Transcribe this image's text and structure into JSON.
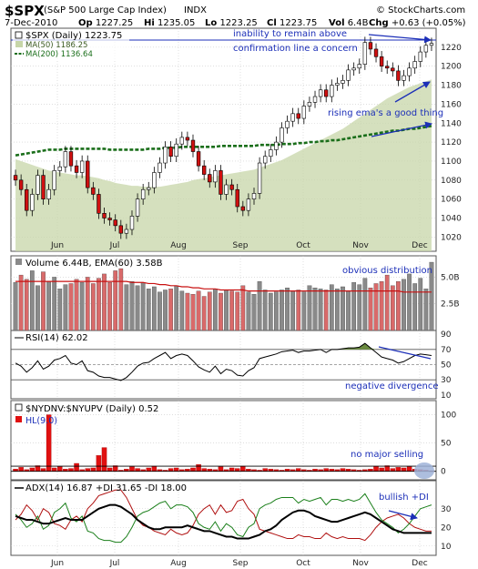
{
  "header": {
    "symbol": "$SPX",
    "name": "(S&P 500 Large Cap Index)",
    "exchange": "INDX",
    "copyright": "© StockCharts.com",
    "date": "7-Dec-2010",
    "open_label": "Op",
    "open": "1227.25",
    "high_label": "Hi",
    "high": "1235.05",
    "low_label": "Lo",
    "low": "1223.25",
    "close_label": "Cl",
    "close": "1223.75",
    "vol_label": "Vol",
    "vol": "6.4B",
    "chg_label": "Chg",
    "chg": "+0.63 (+0.05%)"
  },
  "colors": {
    "up": "#ffffff",
    "down": "#d01010",
    "candle_outline": "#000000",
    "ma50_area": "#c7d6a8",
    "ma200": "#1a6e1a",
    "annotation": "#1c2fb8",
    "volume_up": "#8a8a8a",
    "volume_down": "#d96a6a",
    "ema_line": "#c81010",
    "hl_bar": "#e01010",
    "adx": "#000000",
    "plus_di": "#1a7f1a",
    "minus_di": "#b01010"
  },
  "chart_data": {
    "type": "line",
    "x_labels": [
      "Jun",
      "Jul",
      "Aug",
      "Sep",
      "Oct",
      "Nov",
      "Dec"
    ],
    "price": {
      "legend": "$SPX (Daily) 1223.75",
      "ma50_legend": "MA(50) 1186.25",
      "ma200_legend": "MA(200) 1136.64",
      "yticks": [
        1020,
        1040,
        1060,
        1080,
        1100,
        1120,
        1140,
        1160,
        1180,
        1200,
        1220
      ],
      "ylim": [
        1005,
        1240
      ],
      "close": [
        1080,
        1070,
        1048,
        1065,
        1085,
        1060,
        1070,
        1090,
        1094,
        1110,
        1095,
        1088,
        1100,
        1072,
        1065,
        1045,
        1040,
        1038,
        1032,
        1024,
        1028,
        1042,
        1060,
        1070,
        1072,
        1088,
        1098,
        1115,
        1105,
        1118,
        1125,
        1122,
        1110,
        1095,
        1086,
        1078,
        1090,
        1065,
        1075,
        1070,
        1052,
        1048,
        1060,
        1066,
        1098,
        1105,
        1112,
        1120,
        1135,
        1142,
        1150,
        1145,
        1158,
        1162,
        1168,
        1175,
        1168,
        1180,
        1182,
        1185,
        1196,
        1198,
        1202,
        1225,
        1218,
        1210,
        1200,
        1198,
        1195,
        1185,
        1190,
        1198,
        1205,
        1215,
        1222,
        1224
      ],
      "ma50": [
        1102,
        1100,
        1098,
        1096,
        1094,
        1092,
        1090,
        1089,
        1088,
        1087,
        1086,
        1085,
        1085,
        1084,
        1083,
        1082,
        1080,
        1079,
        1077,
        1076,
        1075,
        1074,
        1074,
        1073,
        1073,
        1073,
        1073,
        1074,
        1075,
        1076,
        1077,
        1078,
        1080,
        1081,
        1082,
        1083,
        1084,
        1085,
        1086,
        1087,
        1088,
        1089,
        1090,
        1091,
        1093,
        1095,
        1097,
        1099,
        1101,
        1104,
        1107,
        1110,
        1113,
        1116,
        1119,
        1122,
        1125,
        1128,
        1131,
        1134,
        1138,
        1142,
        1146,
        1150,
        1154,
        1158,
        1162,
        1166,
        1169,
        1172,
        1175,
        1178,
        1180,
        1182,
        1184,
        1186
      ],
      "ma200": [
        1106,
        1107,
        1108,
        1109,
        1110,
        1111,
        1112,
        1112,
        1112,
        1113,
        1113,
        1113,
        1113,
        1113,
        1113,
        1113,
        1113,
        1112,
        1112,
        1112,
        1112,
        1112,
        1112,
        1112,
        1113,
        1113,
        1113,
        1114,
        1114,
        1114,
        1115,
        1115,
        1115,
        1115,
        1115,
        1115,
        1115,
        1116,
        1116,
        1116,
        1116,
        1116,
        1116,
        1116,
        1117,
        1117,
        1117,
        1117,
        1118,
        1118,
        1118,
        1119,
        1119,
        1120,
        1120,
        1121,
        1121,
        1122,
        1122,
        1123,
        1124,
        1125,
        1126,
        1127,
        1128,
        1129,
        1130,
        1131,
        1132,
        1132,
        1133,
        1134,
        1134,
        1135,
        1136,
        1137
      ]
    },
    "volume": {
      "legend": "Volume 6.44B, EMA(60) 3.58B",
      "yticks": [
        "5.0B",
        "2.5B"
      ],
      "ylim": [
        0,
        7
      ],
      "values": [
        4.5,
        5.2,
        4.8,
        5.6,
        4.2,
        5.5,
        4.6,
        5.0,
        3.9,
        4.3,
        4.4,
        4.8,
        4.5,
        5.0,
        4.4,
        4.9,
        5.3,
        4.5,
        5.6,
        5.8,
        4.3,
        4.6,
        4.2,
        4.5,
        3.9,
        4.1,
        3.6,
        3.8,
        3.9,
        4.2,
        3.7,
        3.5,
        3.4,
        3.7,
        3.2,
        3.6,
        3.9,
        3.5,
        3.8,
        3.7,
        3.6,
        4.2,
        3.6,
        3.4,
        4.6,
        3.8,
        3.5,
        3.6,
        3.8,
        4.0,
        3.7,
        3.8,
        3.6,
        4.2,
        4.0,
        3.9,
        3.8,
        4.3,
        3.9,
        4.1,
        3.7,
        4.5,
        4.3,
        4.9,
        4.0,
        4.4,
        4.6,
        5.2,
        4.2,
        4.6,
        4.8,
        5.3,
        4.4,
        4.9,
        3.9,
        6.4
      ],
      "ema": [
        4.6,
        4.6,
        4.6,
        4.6,
        4.6,
        4.6,
        4.6,
        4.6,
        4.6,
        4.6,
        4.6,
        4.6,
        4.6,
        4.6,
        4.6,
        4.6,
        4.6,
        4.6,
        4.6,
        4.6,
        4.6,
        4.5,
        4.5,
        4.5,
        4.4,
        4.4,
        4.3,
        4.3,
        4.2,
        4.2,
        4.1,
        4.1,
        4.0,
        4.0,
        3.9,
        3.9,
        3.9,
        3.8,
        3.8,
        3.8,
        3.8,
        3.8,
        3.7,
        3.7,
        3.7,
        3.7,
        3.7,
        3.7,
        3.7,
        3.7,
        3.7,
        3.7,
        3.7,
        3.7,
        3.7,
        3.7,
        3.7,
        3.7,
        3.7,
        3.7,
        3.7,
        3.7,
        3.7,
        3.7,
        3.7,
        3.7,
        3.7,
        3.7,
        3.7,
        3.7,
        3.6,
        3.6,
        3.6,
        3.6,
        3.6,
        3.6
      ]
    },
    "rsi": {
      "legend": "RSI(14) 62.02",
      "yticks": [
        70,
        50,
        30
      ],
      "extra_ticks": [
        90,
        10
      ],
      "ylim": [
        5,
        95
      ],
      "values": [
        52,
        48,
        40,
        46,
        55,
        44,
        48,
        56,
        58,
        62,
        52,
        50,
        55,
        42,
        40,
        35,
        33,
        33,
        31,
        29,
        33,
        40,
        48,
        52,
        53,
        58,
        62,
        66,
        58,
        62,
        64,
        62,
        55,
        47,
        43,
        40,
        48,
        38,
        44,
        42,
        36,
        35,
        42,
        46,
        58,
        60,
        62,
        64,
        67,
        68,
        69,
        66,
        68,
        68,
        69,
        70,
        66,
        70,
        70,
        71,
        72,
        72,
        73,
        78,
        72,
        66,
        60,
        58,
        56,
        52,
        54,
        58,
        62,
        64,
        63,
        62
      ]
    },
    "breadth": {
      "legend": "$NYDNV:$NYUPV (Daily) 0.52",
      "hl_legend": "HL(9.0)",
      "yticks": [
        100,
        50,
        0
      ],
      "ylim": [
        -15,
        125
      ],
      "values": [
        4,
        7,
        3,
        6,
        10,
        5,
        100,
        6,
        8,
        4,
        5,
        14,
        3,
        5,
        6,
        28,
        42,
        6,
        10,
        2,
        4,
        8,
        5,
        3,
        6,
        9,
        3,
        2,
        5,
        6,
        3,
        4,
        6,
        12,
        5,
        4,
        3,
        8,
        3,
        6,
        5,
        9,
        4,
        3,
        2,
        5,
        4,
        3,
        2,
        4,
        3,
        5,
        3,
        2,
        4,
        3,
        5,
        4,
        3,
        5,
        4,
        3,
        2,
        3,
        4,
        9,
        6,
        10,
        5,
        7,
        6,
        8,
        4,
        3,
        2,
        1
      ]
    },
    "adx": {
      "legend": "ADX(14) 16.87 +DI 31.65 -DI 18.00",
      "yticks": [
        30,
        20,
        10
      ],
      "ylim": [
        5,
        45
      ],
      "adx": [
        26,
        25,
        24,
        24,
        23,
        22,
        22,
        23,
        24,
        25,
        24,
        24,
        24,
        26,
        28,
        30,
        31,
        32,
        32,
        31,
        29,
        27,
        24,
        22,
        20,
        19,
        19,
        20,
        20,
        20,
        20,
        21,
        20,
        19,
        18,
        18,
        17,
        16,
        15,
        15,
        14,
        14,
        14,
        15,
        16,
        18,
        19,
        21,
        24,
        26,
        28,
        29,
        29,
        28,
        26,
        25,
        24,
        23,
        23,
        24,
        25,
        26,
        27,
        28,
        27,
        25,
        23,
        21,
        19,
        18,
        17,
        17,
        17,
        17,
        17,
        17
      ],
      "plus_di": [
        27,
        24,
        20,
        22,
        26,
        19,
        21,
        28,
        30,
        33,
        25,
        23,
        26,
        18,
        17,
        14,
        13,
        13,
        12,
        12,
        15,
        20,
        26,
        28,
        29,
        31,
        33,
        34,
        30,
        32,
        32,
        31,
        28,
        22,
        20,
        19,
        23,
        18,
        22,
        20,
        16,
        15,
        20,
        22,
        30,
        32,
        33,
        35,
        36,
        36,
        36,
        33,
        35,
        34,
        35,
        36,
        32,
        35,
        35,
        34,
        35,
        34,
        35,
        38,
        33,
        28,
        24,
        22,
        20,
        17,
        19,
        22,
        26,
        30,
        31,
        32
      ],
      "minus_di": [
        24,
        27,
        32,
        29,
        24,
        30,
        28,
        22,
        21,
        19,
        24,
        26,
        23,
        30,
        33,
        37,
        38,
        39,
        40,
        40,
        36,
        30,
        24,
        21,
        20,
        18,
        17,
        16,
        19,
        17,
        16,
        17,
        21,
        27,
        30,
        32,
        27,
        32,
        28,
        29,
        34,
        35,
        30,
        27,
        19,
        18,
        17,
        16,
        15,
        14,
        14,
        16,
        15,
        15,
        14,
        14,
        17,
        15,
        14,
        15,
        14,
        14,
        14,
        13,
        16,
        20,
        23,
        25,
        26,
        27,
        25,
        22,
        20,
        19,
        18,
        18
      ]
    }
  },
  "annotations": {
    "a1": "inability to remain above",
    "a2": "confirmation line a concern",
    "a3": "rising ema's a good thing",
    "a4": "obvious distribution",
    "a5": "negative divergence",
    "a6": "no major selling",
    "a7": "bullish +DI"
  }
}
